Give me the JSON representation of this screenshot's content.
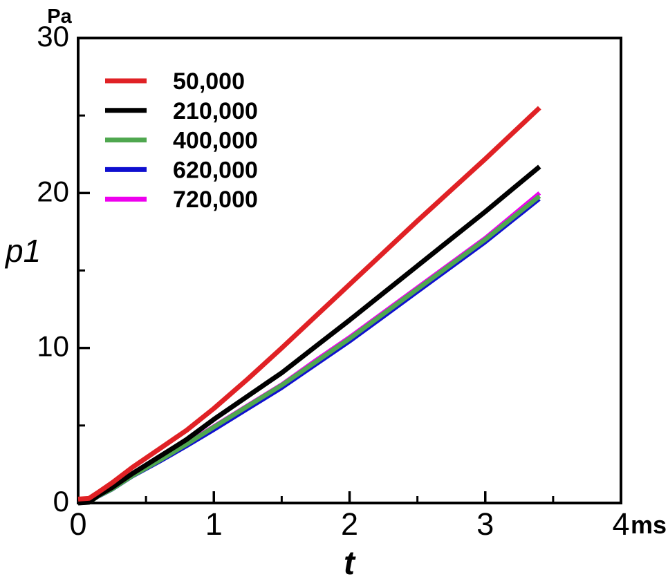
{
  "chart_data": {
    "type": "line",
    "title": "",
    "y_axis_unit": "Pa",
    "y_axis_title": "p1",
    "x_axis_title": "t",
    "x_axis_unit": "ms",
    "xlim": [
      0,
      4
    ],
    "ylim": [
      0,
      30
    ],
    "x_major_ticks": [
      1,
      2,
      3
    ],
    "x_minor_ticks": [
      0.5,
      1.5,
      2.5,
      3.5
    ],
    "y_major_ticks": [
      10,
      20
    ],
    "y_minor_ticks": [
      5,
      15,
      25
    ],
    "x_tick_labels": [
      {
        "value": 0,
        "label": "0"
      },
      {
        "value": 1,
        "label": "1"
      },
      {
        "value": 2,
        "label": "2"
      },
      {
        "value": 3,
        "label": "3"
      },
      {
        "value": 4,
        "label": "4"
      }
    ],
    "y_tick_labels": [
      {
        "value": 0,
        "label": "0"
      },
      {
        "value": 10,
        "label": "10"
      },
      {
        "value": 20,
        "label": "20"
      },
      {
        "value": 30,
        "label": "30"
      }
    ],
    "grid": false,
    "legend_position": "top-left-inside",
    "frame_color": "#000000",
    "x": [
      0,
      0.08,
      0.15,
      0.25,
      0.4,
      0.6,
      0.8,
      1.0,
      1.25,
      1.5,
      1.75,
      2.0,
      2.25,
      2.5,
      2.75,
      3.0,
      3.2,
      3.4
    ],
    "series": [
      {
        "name": "50,000",
        "color": "#e02125",
        "values": [
          0.25,
          0.3,
          0.7,
          1.3,
          2.3,
          3.5,
          4.7,
          6.1,
          8.0,
          10.0,
          12.05,
          14.1,
          16.15,
          18.2,
          20.2,
          22.2,
          23.85,
          25.5
        ]
      },
      {
        "name": "210,000",
        "color": "#000000",
        "values": [
          0,
          0.05,
          0.5,
          1.0,
          1.9,
          3.0,
          4.1,
          5.4,
          6.9,
          8.4,
          10.1,
          11.8,
          13.55,
          15.3,
          17.05,
          18.8,
          20.25,
          21.7
        ]
      },
      {
        "name": "400,000",
        "color": "#4fa74f",
        "values": [
          0,
          0.04,
          0.45,
          0.9,
          1.75,
          2.75,
          3.8,
          4.9,
          6.25,
          7.6,
          9.1,
          10.6,
          12.2,
          13.8,
          15.4,
          17.0,
          18.4,
          19.8
        ]
      },
      {
        "name": "620,000",
        "color": "#0f0fcf",
        "values": [
          0,
          0.04,
          0.4,
          0.85,
          1.7,
          2.65,
          3.65,
          4.7,
          6.05,
          7.4,
          8.9,
          10.4,
          12.0,
          13.6,
          15.2,
          16.8,
          18.2,
          19.6
        ]
      },
      {
        "name": "720,000",
        "color": "#ee00ee",
        "values": [
          0,
          0.04,
          0.45,
          0.9,
          1.75,
          2.8,
          3.85,
          4.95,
          6.3,
          7.65,
          9.2,
          10.7,
          12.3,
          13.9,
          15.5,
          17.1,
          18.55,
          20.0
        ]
      }
    ]
  }
}
